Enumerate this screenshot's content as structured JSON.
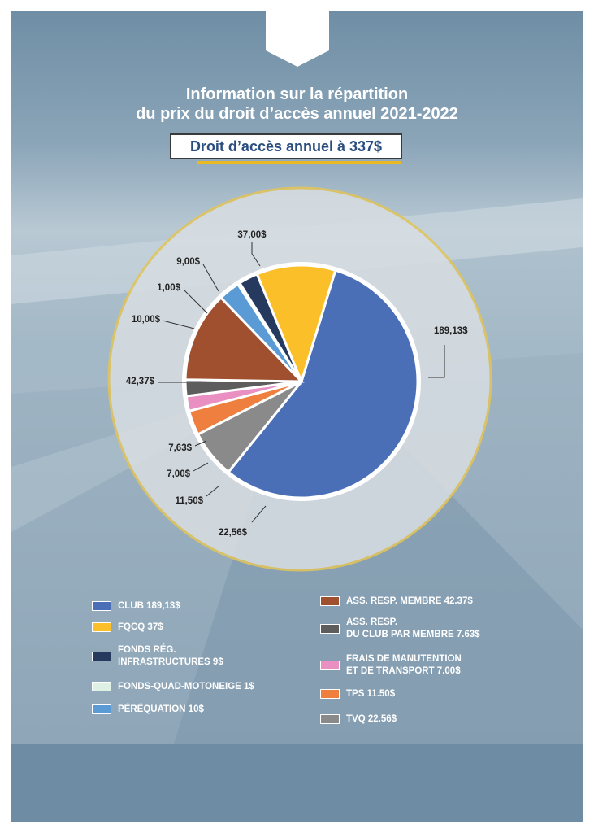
{
  "title_line1": "Information sur la répartition",
  "title_line2": "du prix du droit d’accès annuel 2021-2022",
  "banner": "Droit d’accès annuel à 337$",
  "chart_data": {
    "type": "pie",
    "title": "Information sur la répartition du prix du droit d’accès annuel 2021-2022",
    "total": 337,
    "slices": [
      {
        "label": "CLUB 189,13$",
        "value": 189.13,
        "value_label": "189,13$",
        "color": "#4a6fb7"
      },
      {
        "label": "TVQ 22.56$",
        "value": 22.56,
        "value_label": "22,56$",
        "color": "#8a8a8a"
      },
      {
        "label": "TPS 11.50$",
        "value": 11.5,
        "value_label": "11,50$",
        "color": "#ef7f3f"
      },
      {
        "label": "FRAIS DE MANUTENTION\nET DE TRANSPORT 7.00$",
        "value": 7.0,
        "value_label": "7,00$",
        "color": "#e98fc2"
      },
      {
        "label": "ASS. RESP.\nDU CLUB PAR MEMBRE 7.63$",
        "value": 7.63,
        "value_label": "7,63$",
        "color": "#5d5d5d"
      },
      {
        "label": "ASS. RESP. MEMBRE 42.37$",
        "value": 42.37,
        "value_label": "42,37$",
        "color": "#a0502e"
      },
      {
        "label": "PÉRÉQUATION 10$",
        "value": 10.0,
        "value_label": "10,00$",
        "color": "#5b9bd5"
      },
      {
        "label": "FONDS-QUAD-MOTONEIGE 1$",
        "value": 1.0,
        "value_label": "1,00$",
        "color": "#dff0e4"
      },
      {
        "label": "FONDS RÉG.\nINFRASTRUCTURES 9$",
        "value": 9.0,
        "value_label": "9,00$",
        "color": "#26395f"
      },
      {
        "label": "FQCQ 37$",
        "value": 37.0,
        "value_label": "37,00$",
        "color": "#fbbf2a"
      }
    ],
    "legend_left": [
      {
        "text": "CLUB 189,13$",
        "color": "#4a6fb7"
      },
      {
        "text": "FQCQ 37$",
        "color": "#fbbf2a"
      },
      {
        "lines": [
          "FONDS RÉG.",
          "INFRASTRUCTURES 9$"
        ],
        "color": "#26395f"
      },
      {
        "text": "FONDS-QUAD-MOTONEIGE 1$",
        "color": "#dff0e4"
      },
      {
        "text": "PÉRÉQUATION 10$",
        "color": "#5b9bd5"
      }
    ],
    "legend_right": [
      {
        "text": "ASS. RESP. MEMBRE 42.37$",
        "color": "#a0502e"
      },
      {
        "lines": [
          "ASS. RESP.",
          "DU CLUB PAR MEMBRE 7.63$"
        ],
        "color": "#5d5d5d"
      },
      {
        "lines": [
          "FRAIS DE MANUTENTION",
          "ET DE TRANSPORT 7.00$"
        ],
        "color": "#e98fc2"
      },
      {
        "text": "TPS 11.50$",
        "color": "#ef7f3f"
      },
      {
        "text": "TVQ 22.56$",
        "color": "#8a8a8a"
      }
    ],
    "legend_placement": "bottom"
  },
  "colors": {
    "background": "#8fa6b8",
    "footer": "#6e8ca3",
    "ring": "#e1c45a",
    "halo": "#d7dde2",
    "title": "#2a4d80"
  }
}
